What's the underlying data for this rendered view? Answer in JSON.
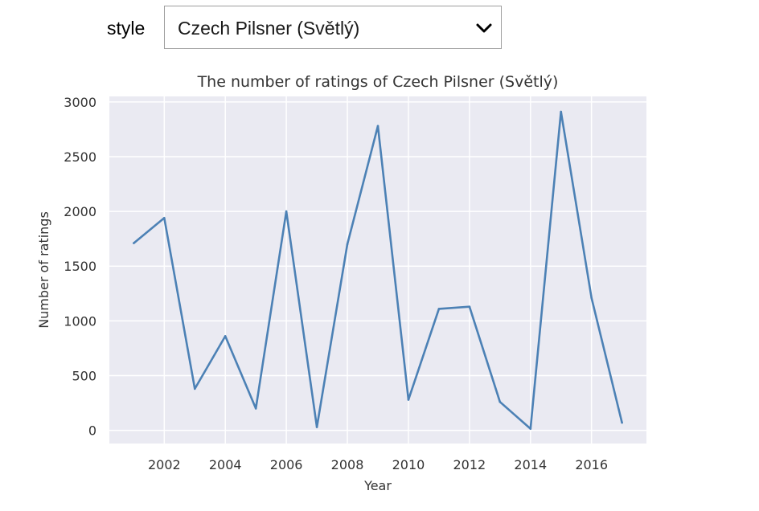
{
  "widget": {
    "label": "style",
    "selected": "Czech Pilsner (Světlý)"
  },
  "chart_data": {
    "type": "line",
    "title": "The number of ratings of Czech Pilsner (Světlý)",
    "xlabel": "Year",
    "ylabel": "Number of ratings",
    "x": [
      2001,
      2002,
      2003,
      2004,
      2005,
      2006,
      2007,
      2008,
      2009,
      2010,
      2011,
      2012,
      2013,
      2014,
      2015,
      2016,
      2017
    ],
    "values": [
      1710,
      1940,
      380,
      860,
      200,
      2000,
      30,
      1700,
      2780,
      280,
      1110,
      1130,
      260,
      15,
      2910,
      1210,
      70
    ],
    "xticks": [
      2002,
      2004,
      2006,
      2008,
      2010,
      2012,
      2014,
      2016
    ],
    "yticks": [
      0,
      500,
      1000,
      1500,
      2000,
      2500,
      3000
    ],
    "xlim": [
      2000.2,
      2017.8
    ],
    "ylim": [
      -120,
      3050
    ],
    "grid": true,
    "colors": {
      "line": "#4c81b5",
      "background": "#eaeaf2",
      "grid": "#ffffff"
    }
  }
}
